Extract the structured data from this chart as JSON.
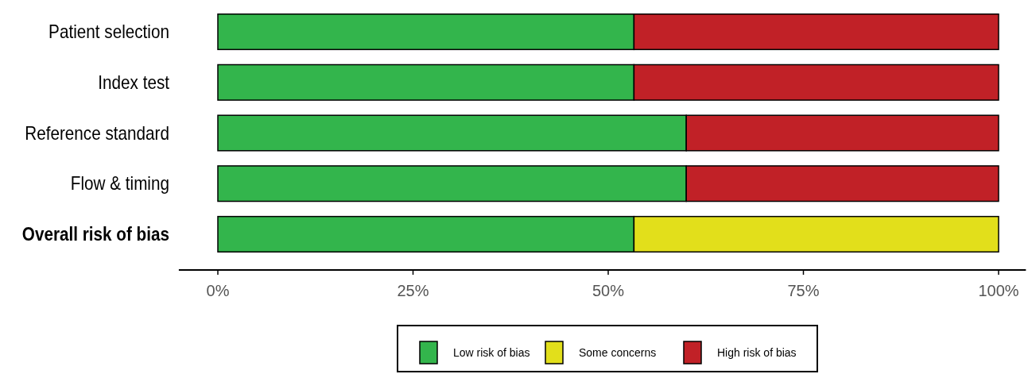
{
  "chart_data": {
    "type": "bar",
    "orientation": "horizontal",
    "stacked": true,
    "categories": [
      "Patient selection",
      "Index test",
      "Reference standard",
      "Flow & timing",
      "Overall risk of bias"
    ],
    "series": [
      {
        "name": "Low risk of bias",
        "color": "#33b54c",
        "values": [
          53.3,
          53.3,
          60,
          60,
          53.3
        ]
      },
      {
        "name": "Some concerns",
        "color": "#e2df1b",
        "values": [
          0,
          0,
          0,
          0,
          46.7
        ]
      },
      {
        "name": "High risk of bias",
        "color": "#c12127",
        "values": [
          46.7,
          46.7,
          40,
          40,
          0
        ]
      }
    ],
    "xlim": [
      -5,
      103.5
    ],
    "xticks": [
      {
        "value": 0,
        "label": "0%"
      },
      {
        "value": 25,
        "label": "25%"
      },
      {
        "value": 50,
        "label": "50%"
      },
      {
        "value": 75,
        "label": "75%"
      },
      {
        "value": 100,
        "label": "100%"
      }
    ],
    "legend": "bottom",
    "grid": false
  }
}
